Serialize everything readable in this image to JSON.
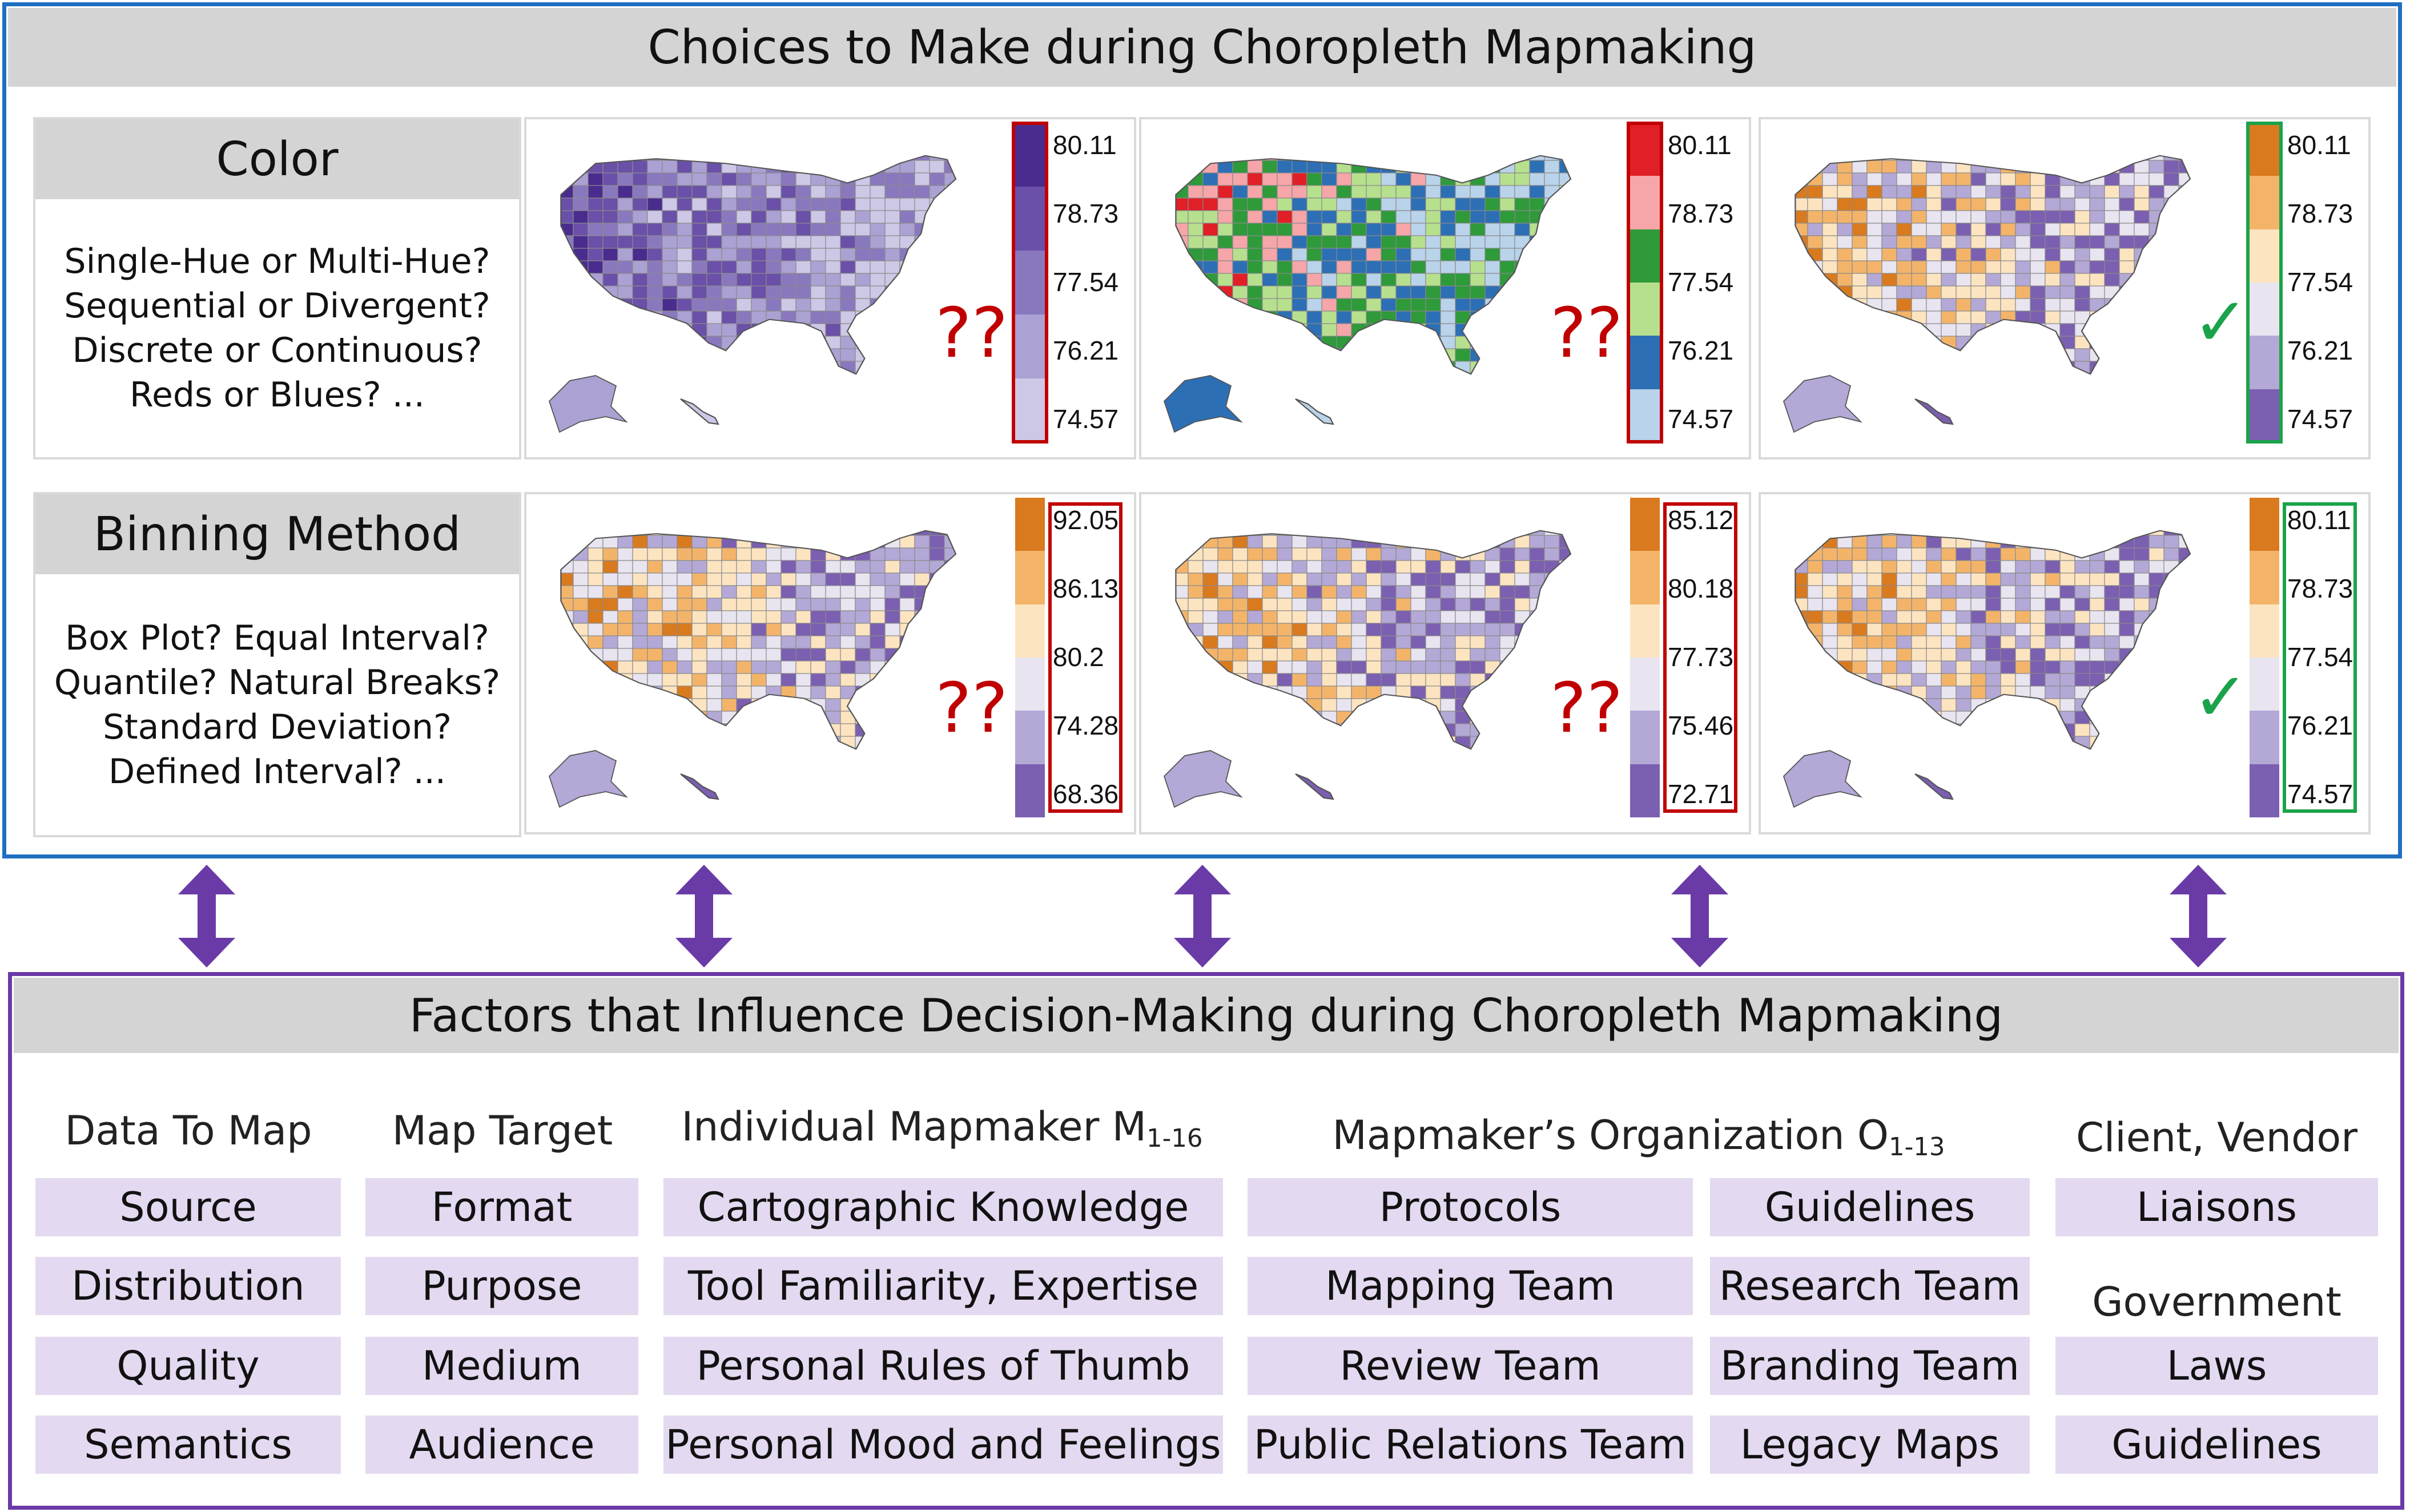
{
  "top": {
    "title": "Choices to Make during Choropleth Mapmaking",
    "color": {
      "heading": "Color",
      "questions": [
        "Single-Hue or Multi-Hue?",
        "Sequential or Divergent?",
        "Discrete or Continuous?",
        "Reds or Blues? ..."
      ]
    },
    "binning": {
      "heading": "Binning Method",
      "questions": [
        "Box Plot? Equal Interval?",
        "Quantile? Natural Breaks?",
        "Standard Deviation?",
        "Defined Interval? ..."
      ]
    },
    "uncertain_mark": "??",
    "ok_mark": "✓",
    "maps": {
      "color_row": [
        {
          "palette": [
            "#4a2c8f",
            "#6a50a8",
            "#8a78bf",
            "#aba1d3",
            "#cdc8e6"
          ],
          "ticks": [
            "80.11",
            "78.73",
            "77.54",
            "76.21",
            "74.57"
          ],
          "verdict": "bad"
        },
        {
          "palette": [
            "#e01f26",
            "#f6a5a8",
            "#2e9a3a",
            "#b7e08e",
            "#2c6fb5",
            "#b9d3ea"
          ],
          "ticks": [
            "80.11",
            "78.73",
            "77.54",
            "76.21",
            "74.57"
          ],
          "verdict": "bad"
        },
        {
          "palette": [
            "#d97a1f",
            "#f3b46a",
            "#fde4c0",
            "#e8e4f0",
            "#b3a8d6",
            "#7b5fb1"
          ],
          "ticks": [
            "80.11",
            "78.73",
            "77.54",
            "76.21",
            "74.57"
          ],
          "verdict": "good"
        }
      ],
      "binning_row": [
        {
          "palette": [
            "#d97a1f",
            "#f3b46a",
            "#fde4c0",
            "#e8e4f0",
            "#b3a8d6",
            "#7b5fb1"
          ],
          "ticks": [
            "92.05",
            "86.13",
            "80.2",
            "74.28",
            "68.36"
          ],
          "verdict": "bad"
        },
        {
          "palette": [
            "#d97a1f",
            "#f3b46a",
            "#fde4c0",
            "#e8e4f0",
            "#b3a8d6",
            "#7b5fb1"
          ],
          "ticks": [
            "85.12",
            "80.18",
            "77.73",
            "75.46",
            "72.71"
          ],
          "verdict": "bad"
        },
        {
          "palette": [
            "#d97a1f",
            "#f3b46a",
            "#fde4c0",
            "#e8e4f0",
            "#b3a8d6",
            "#7b5fb1"
          ],
          "ticks": [
            "80.11",
            "78.73",
            "77.54",
            "76.21",
            "74.57"
          ],
          "verdict": "good"
        }
      ]
    }
  },
  "bottom": {
    "title": "Factors that Influence Decision-Making during Choropleth Mapmaking",
    "columns": {
      "data": {
        "heading": "Data To Map",
        "items": [
          "Source",
          "Distribution",
          "Quality",
          "Semantics"
        ]
      },
      "target": {
        "heading": "Map Target",
        "items": [
          "Format",
          "Purpose",
          "Medium",
          "Audience"
        ]
      },
      "individual": {
        "heading": "Individual Mapmaker M",
        "sub": "1-16",
        "items": [
          "Cartographic Knowledge",
          "Tool Familiarity, Expertise",
          "Personal Rules of Thumb",
          "Personal Mood and Feelings"
        ]
      },
      "org": {
        "heading": "Mapmaker’s Organization O",
        "sub": "1-13",
        "items_left": [
          "Protocols",
          "Mapping Team",
          "Review Team",
          "Public Relations Team"
        ],
        "items_right": [
          "Guidelines",
          "Research Team",
          "Branding Team",
          "Legacy Maps"
        ]
      },
      "client": {
        "heading": "Client, Vendor",
        "items": [
          "Liaisons"
        ]
      },
      "gov": {
        "heading": "Government",
        "items": [
          "Laws",
          "Guidelines"
        ]
      }
    }
  },
  "colors": {
    "top_frame": "#1f6fc1",
    "bottom_frame": "#6a3aa6",
    "arrow": "#6a3aa6",
    "bad": "#c00000",
    "good": "#1aa34a",
    "chip": "#e3d9f0"
  }
}
